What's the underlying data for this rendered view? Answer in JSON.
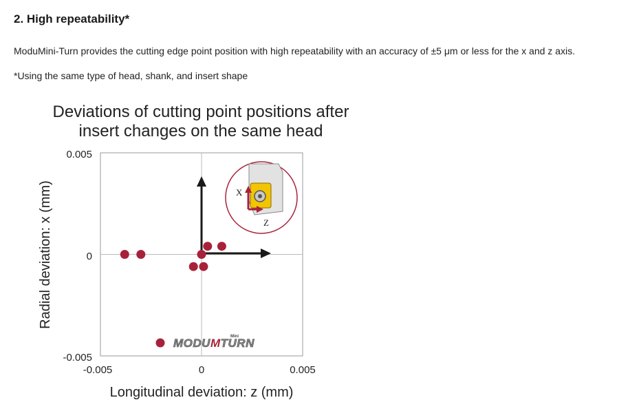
{
  "section": {
    "heading": "2. High repeatability*",
    "description": "ModuMini-Turn provides the cutting edge point position with high repeatability with an accuracy of ±5 μm or less for the x and z axis.",
    "footnote": "*Using the same type of head, shank, and insert shape"
  },
  "chart_data": {
    "type": "scatter",
    "title": [
      "Deviations of cutting point positions after",
      "insert changes on the same head"
    ],
    "xlabel": "Longitudinal deviation: z (mm)",
    "ylabel": "Radial deviation: x (mm)",
    "xlim": [
      -0.005,
      0.005
    ],
    "ylim": [
      -0.005,
      0.005
    ],
    "xticks": [
      "-0.005",
      "0",
      "0.005"
    ],
    "yticks": [
      "0.005",
      "0",
      "-0.005"
    ],
    "grid": "zero lines only",
    "series": [
      {
        "name": "ModuMini-Turn",
        "color": "#a8213a",
        "points": [
          {
            "x": -0.0038,
            "y": 0.0
          },
          {
            "x": -0.003,
            "y": 0.0
          },
          {
            "x": 0.0003,
            "y": 0.0004
          },
          {
            "x": 0.001,
            "y": 0.0004
          },
          {
            "x": 0.0,
            "y": 0.0
          },
          {
            "x": -0.0004,
            "y": -0.0006
          },
          {
            "x": 0.0001,
            "y": -0.0006
          }
        ]
      }
    ],
    "legend": {
      "position": "bottom-right",
      "brand_text": "MODUMiniTURN"
    },
    "annotations": {
      "axis_arrows": [
        "x",
        "z"
      ],
      "inset_labels": {
        "x": "X",
        "z": "Z"
      },
      "accent_color": "#a8213a",
      "insert_color": "#f2c500"
    }
  }
}
